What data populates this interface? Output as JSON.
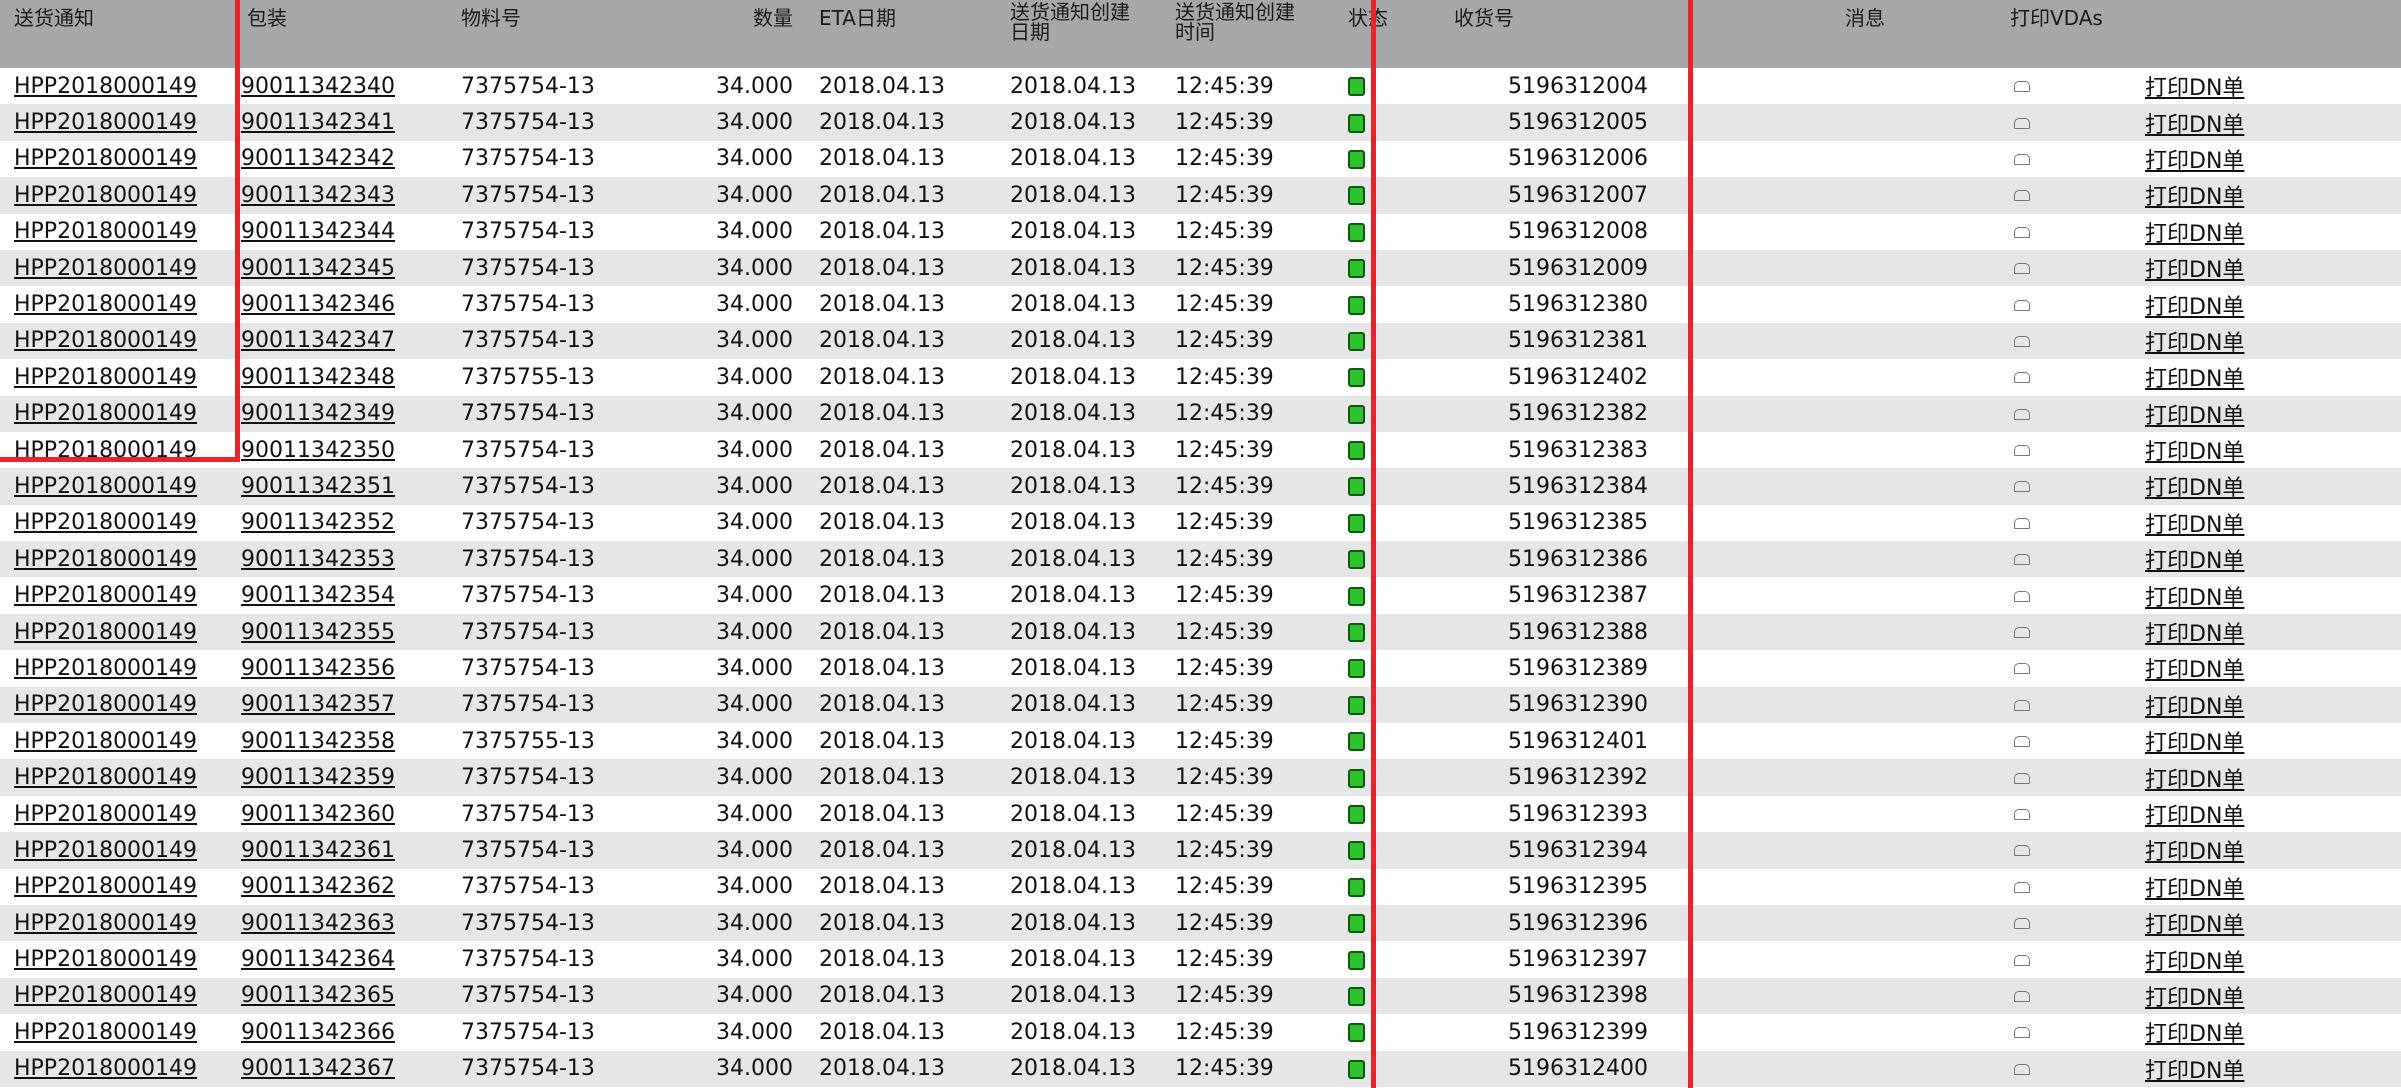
{
  "table": {
    "headers": {
      "delivery_notice": "送货通知",
      "package": "包装",
      "material_no": "物料号",
      "quantity": "数量",
      "eta_date": "ETA日期",
      "created_date_1": "送货通知创建",
      "created_date_2": "日期",
      "created_time_1": "送货通知创建",
      "created_time_2": "时间",
      "status": "状态",
      "receipt_no": "收货号",
      "message": "消息",
      "print_vdas": "打印VDAs"
    },
    "rows": [
      {
        "notice": "HPP2018000149",
        "package": "90011342340",
        "material": "7375754-13",
        "qty": "34.000",
        "eta": "2018.04.13",
        "cdate": "2018.04.13",
        "ctime": "12:45:39",
        "receipt": "5196312004",
        "print": "打印DN单"
      },
      {
        "notice": "HPP2018000149",
        "package": "90011342341",
        "material": "7375754-13",
        "qty": "34.000",
        "eta": "2018.04.13",
        "cdate": "2018.04.13",
        "ctime": "12:45:39",
        "receipt": "5196312005",
        "print": "打印DN单"
      },
      {
        "notice": "HPP2018000149",
        "package": "90011342342",
        "material": "7375754-13",
        "qty": "34.000",
        "eta": "2018.04.13",
        "cdate": "2018.04.13",
        "ctime": "12:45:39",
        "receipt": "5196312006",
        "print": "打印DN单"
      },
      {
        "notice": "HPP2018000149",
        "package": "90011342343",
        "material": "7375754-13",
        "qty": "34.000",
        "eta": "2018.04.13",
        "cdate": "2018.04.13",
        "ctime": "12:45:39",
        "receipt": "5196312007",
        "print": "打印DN单"
      },
      {
        "notice": "HPP2018000149",
        "package": "90011342344",
        "material": "7375754-13",
        "qty": "34.000",
        "eta": "2018.04.13",
        "cdate": "2018.04.13",
        "ctime": "12:45:39",
        "receipt": "5196312008",
        "print": "打印DN单"
      },
      {
        "notice": "HPP2018000149",
        "package": "90011342345",
        "material": "7375754-13",
        "qty": "34.000",
        "eta": "2018.04.13",
        "cdate": "2018.04.13",
        "ctime": "12:45:39",
        "receipt": "5196312009",
        "print": "打印DN单"
      },
      {
        "notice": "HPP2018000149",
        "package": "90011342346",
        "material": "7375754-13",
        "qty": "34.000",
        "eta": "2018.04.13",
        "cdate": "2018.04.13",
        "ctime": "12:45:39",
        "receipt": "5196312380",
        "print": "打印DN单"
      },
      {
        "notice": "HPP2018000149",
        "package": "90011342347",
        "material": "7375754-13",
        "qty": "34.000",
        "eta": "2018.04.13",
        "cdate": "2018.04.13",
        "ctime": "12:45:39",
        "receipt": "5196312381",
        "print": "打印DN单"
      },
      {
        "notice": "HPP2018000149",
        "package": "90011342348",
        "material": "7375755-13",
        "qty": "34.000",
        "eta": "2018.04.13",
        "cdate": "2018.04.13",
        "ctime": "12:45:39",
        "receipt": "5196312402",
        "print": "打印DN单"
      },
      {
        "notice": "HPP2018000149",
        "package": "90011342349",
        "material": "7375754-13",
        "qty": "34.000",
        "eta": "2018.04.13",
        "cdate": "2018.04.13",
        "ctime": "12:45:39",
        "receipt": "5196312382",
        "print": "打印DN单"
      },
      {
        "notice": "HPP2018000149",
        "package": "90011342350",
        "material": "7375754-13",
        "qty": "34.000",
        "eta": "2018.04.13",
        "cdate": "2018.04.13",
        "ctime": "12:45:39",
        "receipt": "5196312383",
        "print": "打印DN单"
      },
      {
        "notice": "HPP2018000149",
        "package": "90011342351",
        "material": "7375754-13",
        "qty": "34.000",
        "eta": "2018.04.13",
        "cdate": "2018.04.13",
        "ctime": "12:45:39",
        "receipt": "5196312384",
        "print": "打印DN单"
      },
      {
        "notice": "HPP2018000149",
        "package": "90011342352",
        "material": "7375754-13",
        "qty": "34.000",
        "eta": "2018.04.13",
        "cdate": "2018.04.13",
        "ctime": "12:45:39",
        "receipt": "5196312385",
        "print": "打印DN单"
      },
      {
        "notice": "HPP2018000149",
        "package": "90011342353",
        "material": "7375754-13",
        "qty": "34.000",
        "eta": "2018.04.13",
        "cdate": "2018.04.13",
        "ctime": "12:45:39",
        "receipt": "5196312386",
        "print": "打印DN单"
      },
      {
        "notice": "HPP2018000149",
        "package": "90011342354",
        "material": "7375754-13",
        "qty": "34.000",
        "eta": "2018.04.13",
        "cdate": "2018.04.13",
        "ctime": "12:45:39",
        "receipt": "5196312387",
        "print": "打印DN单"
      },
      {
        "notice": "HPP2018000149",
        "package": "90011342355",
        "material": "7375754-13",
        "qty": "34.000",
        "eta": "2018.04.13",
        "cdate": "2018.04.13",
        "ctime": "12:45:39",
        "receipt": "5196312388",
        "print": "打印DN单"
      },
      {
        "notice": "HPP2018000149",
        "package": "90011342356",
        "material": "7375754-13",
        "qty": "34.000",
        "eta": "2018.04.13",
        "cdate": "2018.04.13",
        "ctime": "12:45:39",
        "receipt": "5196312389",
        "print": "打印DN单"
      },
      {
        "notice": "HPP2018000149",
        "package": "90011342357",
        "material": "7375754-13",
        "qty": "34.000",
        "eta": "2018.04.13",
        "cdate": "2018.04.13",
        "ctime": "12:45:39",
        "receipt": "5196312390",
        "print": "打印DN单"
      },
      {
        "notice": "HPP2018000149",
        "package": "90011342358",
        "material": "7375755-13",
        "qty": "34.000",
        "eta": "2018.04.13",
        "cdate": "2018.04.13",
        "ctime": "12:45:39",
        "receipt": "5196312401",
        "print": "打印DN单"
      },
      {
        "notice": "HPP2018000149",
        "package": "90011342359",
        "material": "7375754-13",
        "qty": "34.000",
        "eta": "2018.04.13",
        "cdate": "2018.04.13",
        "ctime": "12:45:39",
        "receipt": "5196312392",
        "print": "打印DN单"
      },
      {
        "notice": "HPP2018000149",
        "package": "90011342360",
        "material": "7375754-13",
        "qty": "34.000",
        "eta": "2018.04.13",
        "cdate": "2018.04.13",
        "ctime": "12:45:39",
        "receipt": "5196312393",
        "print": "打印DN单"
      },
      {
        "notice": "HPP2018000149",
        "package": "90011342361",
        "material": "7375754-13",
        "qty": "34.000",
        "eta": "2018.04.13",
        "cdate": "2018.04.13",
        "ctime": "12:45:39",
        "receipt": "5196312394",
        "print": "打印DN单"
      },
      {
        "notice": "HPP2018000149",
        "package": "90011342362",
        "material": "7375754-13",
        "qty": "34.000",
        "eta": "2018.04.13",
        "cdate": "2018.04.13",
        "ctime": "12:45:39",
        "receipt": "5196312395",
        "print": "打印DN单"
      },
      {
        "notice": "HPP2018000149",
        "package": "90011342363",
        "material": "7375754-13",
        "qty": "34.000",
        "eta": "2018.04.13",
        "cdate": "2018.04.13",
        "ctime": "12:45:39",
        "receipt": "5196312396",
        "print": "打印DN单"
      },
      {
        "notice": "HPP2018000149",
        "package": "90011342364",
        "material": "7375754-13",
        "qty": "34.000",
        "eta": "2018.04.13",
        "cdate": "2018.04.13",
        "ctime": "12:45:39",
        "receipt": "5196312397",
        "print": "打印DN单"
      },
      {
        "notice": "HPP2018000149",
        "package": "90011342365",
        "material": "7375754-13",
        "qty": "34.000",
        "eta": "2018.04.13",
        "cdate": "2018.04.13",
        "ctime": "12:45:39",
        "receipt": "5196312398",
        "print": "打印DN单"
      },
      {
        "notice": "HPP2018000149",
        "package": "90011342366",
        "material": "7375754-13",
        "qty": "34.000",
        "eta": "2018.04.13",
        "cdate": "2018.04.13",
        "ctime": "12:45:39",
        "receipt": "5196312399",
        "print": "打印DN单"
      },
      {
        "notice": "HPP2018000149",
        "package": "90011342367",
        "material": "7375754-13",
        "qty": "34.000",
        "eta": "2018.04.13",
        "cdate": "2018.04.13",
        "ctime": "12:45:39",
        "receipt": "5196312400",
        "print": "打印DN单"
      }
    ]
  },
  "icons": {
    "status": "status-green-square-icon",
    "print": "print-icon"
  },
  "colors": {
    "header_bg": "#a7a7a7",
    "row_alt_bg": "#e6e6e6",
    "status_green": "#2fc22f",
    "annotation_red": "#e8232b"
  }
}
